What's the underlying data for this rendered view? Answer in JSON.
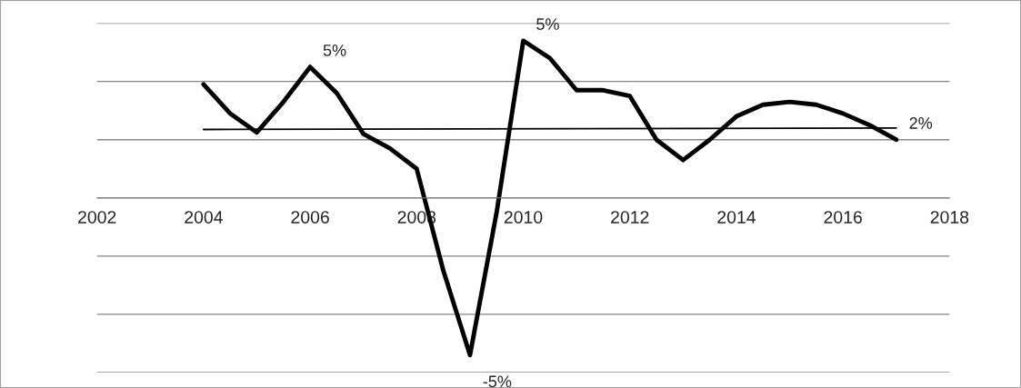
{
  "chart_data": {
    "type": "line",
    "x": [
      2004,
      2004.5,
      2005,
      2005.5,
      2006,
      2006.5,
      2007,
      2007.5,
      2008,
      2008.5,
      2009,
      2009.5,
      2010,
      2010.5,
      2011,
      2011.5,
      2012,
      2012.5,
      2013,
      2013.5,
      2014,
      2014.5,
      2015,
      2015.5,
      2016,
      2016.5,
      2017
    ],
    "series": [
      {
        "color": "#000000",
        "values": [
          3.9,
          2.9,
          2.25,
          3.3,
          4.5,
          3.6,
          2.2,
          1.7,
          1.0,
          -2.5,
          -5.4,
          -0.5,
          5.4,
          4.8,
          3.7,
          3.7,
          3.5,
          2.0,
          1.3,
          2.0,
          2.8,
          3.2,
          3.3,
          3.2,
          2.9,
          2.5,
          2.0
        ],
        "value_labels": [
          null,
          null,
          null,
          null,
          "5%",
          null,
          null,
          null,
          null,
          null,
          "-5%",
          null,
          "5%",
          null,
          null,
          null,
          null,
          null,
          null,
          null,
          null,
          null,
          null,
          null,
          null,
          null,
          "2%"
        ]
      },
      {
        "type": "line",
        "x": [
          2004,
          2017
        ],
        "color": "#000000",
        "values": [
          2.35,
          2.4
        ]
      }
    ],
    "xlim": [
      2002,
      2018
    ],
    "xticks": [
      2002,
      2004,
      2006,
      2008,
      2010,
      2012,
      2014,
      2016,
      2018
    ],
    "ylim": [
      -6,
      6
    ],
    "yticks": [
      {
        "value": -6,
        "label": null
      },
      {
        "value": -4,
        "label": null
      },
      {
        "value": -2,
        "label": null
      },
      {
        "value": 0,
        "label": null
      },
      {
        "value": 2,
        "label": null
      },
      {
        "value": 4,
        "label": null
      },
      {
        "value": 6,
        "label": null
      }
    ],
    "tick_labels": "x",
    "grid": "y",
    "line_style": "solid"
  }
}
